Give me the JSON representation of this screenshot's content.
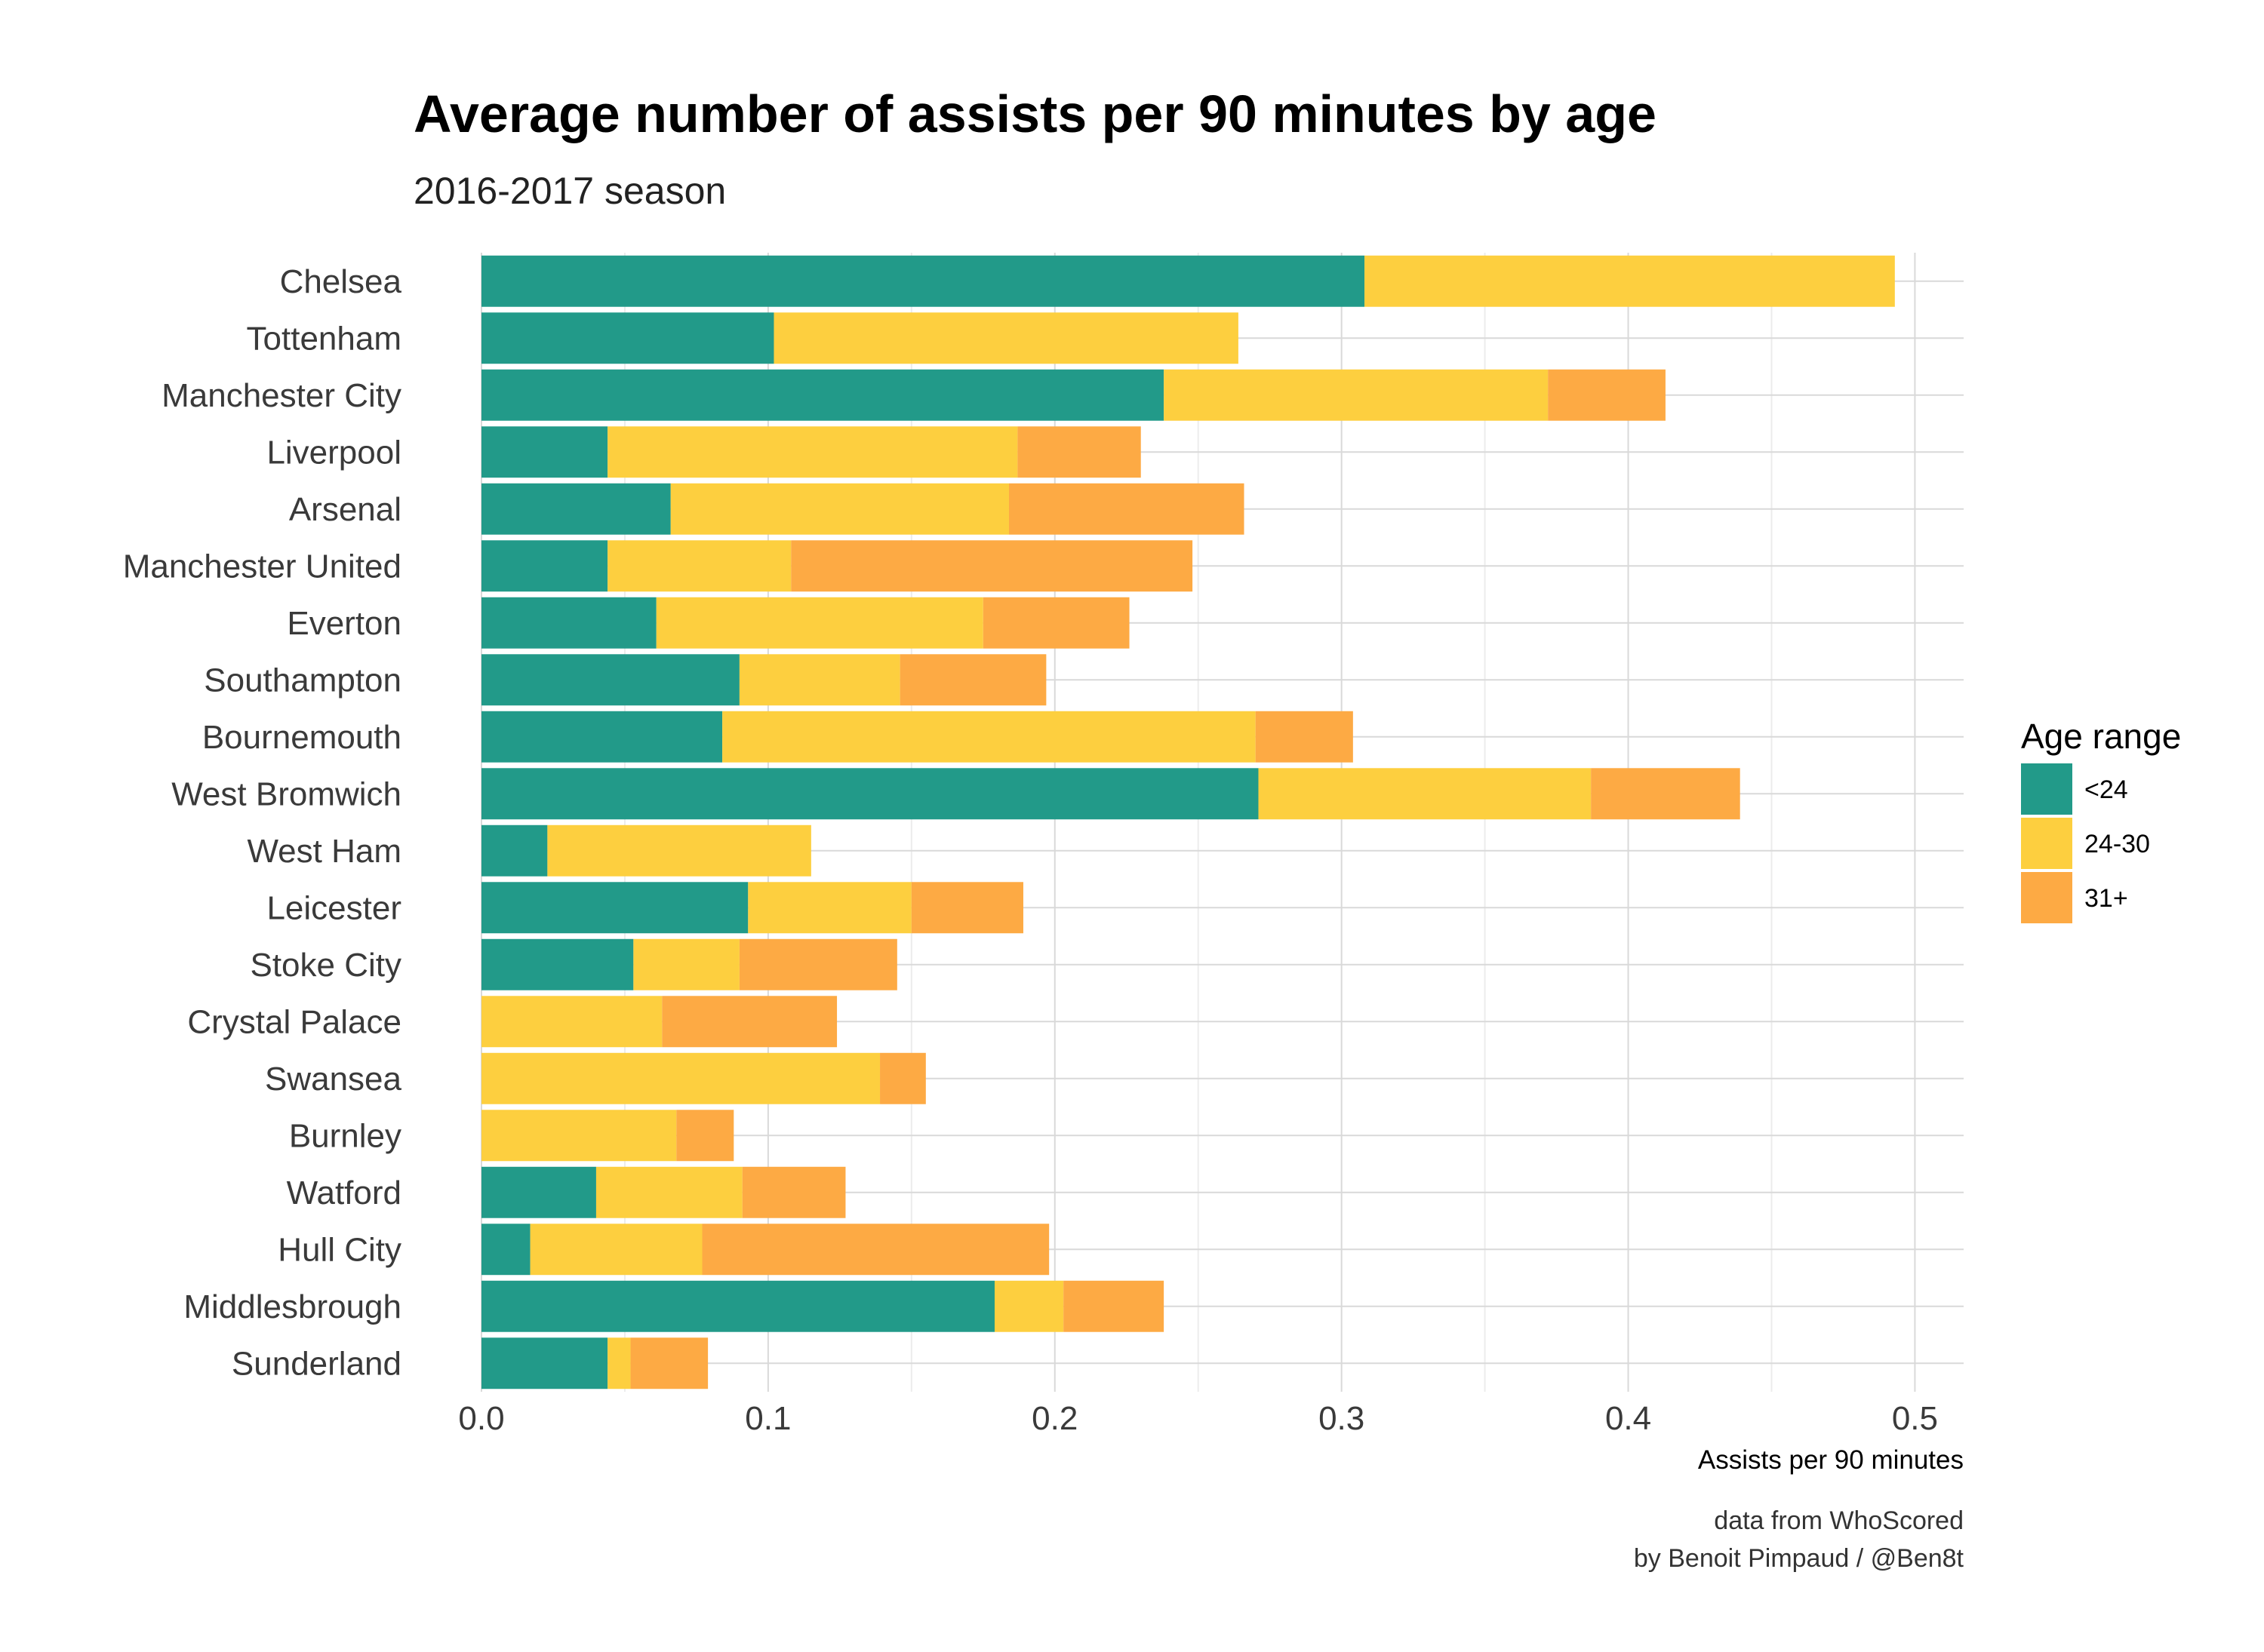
{
  "chart_data": {
    "type": "bar",
    "orientation": "horizontal",
    "stacked": true,
    "title": "Average number of assists per 90 minutes by age",
    "subtitle": "2016-2017 season",
    "xlabel": "Assists per 90 minutes",
    "ylabel": "",
    "xlim": [
      0,
      0.517
    ],
    "xticks": [
      0.0,
      0.1,
      0.2,
      0.3,
      0.4,
      0.5
    ],
    "xtick_labels": [
      "0.0",
      "0.1",
      "0.2",
      "0.3",
      "0.4",
      "0.5"
    ],
    "grid": true,
    "legend": {
      "title": "Age range",
      "position": "right"
    },
    "categories": [
      "Chelsea",
      "Tottenham",
      "Manchester City",
      "Liverpool",
      "Arsenal",
      "Manchester United",
      "Everton",
      "Southampton",
      "Bournemouth",
      "West Bromwich",
      "West Ham",
      "Leicester",
      "Stoke City",
      "Crystal Palace",
      "Swansea",
      "Burnley",
      "Watford",
      "Hull City",
      "Middlesbrough",
      "Sunderland"
    ],
    "series": [
      {
        "name": "<24",
        "color": "#229a89",
        "values": [
          0.308,
          0.102,
          0.238,
          0.044,
          0.066,
          0.044,
          0.061,
          0.09,
          0.084,
          0.271,
          0.023,
          0.093,
          0.053,
          0.0,
          0.0,
          0.0,
          0.04,
          0.017,
          0.179,
          0.044
        ]
      },
      {
        "name": "24-30",
        "color": "#fdcf3f",
        "values": [
          0.185,
          0.162,
          0.134,
          0.143,
          0.118,
          0.064,
          0.114,
          0.056,
          0.186,
          0.116,
          0.092,
          0.057,
          0.037,
          0.063,
          0.139,
          0.068,
          0.051,
          0.06,
          0.024,
          0.008
        ]
      },
      {
        "name": "31+",
        "color": "#fdaa44",
        "values": [
          0.0,
          0.0,
          0.041,
          0.043,
          0.082,
          0.14,
          0.051,
          0.051,
          0.034,
          0.052,
          0.0,
          0.039,
          0.055,
          0.061,
          0.016,
          0.02,
          0.036,
          0.121,
          0.035,
          0.027
        ]
      }
    ],
    "caption": [
      "data from WhoScored",
      "by Benoit Pimpaud / @Ben8t"
    ]
  }
}
